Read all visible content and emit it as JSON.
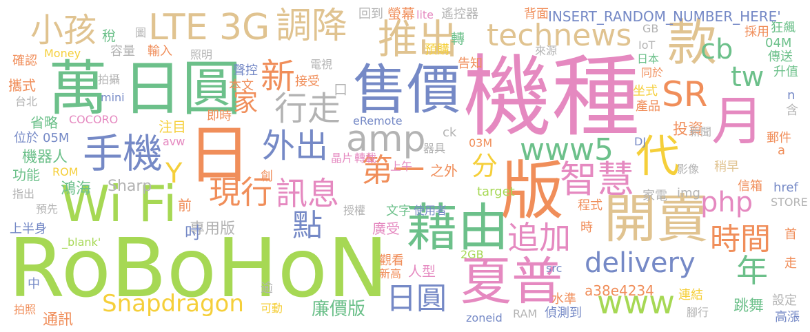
{
  "colors": {
    "pink": "#e589c0",
    "blue": "#7589c6",
    "green": "#6cc08a",
    "orange": "#f08e5a",
    "lime": "#a6d854",
    "yellow": "#f5cf3a",
    "tan": "#e0c390",
    "gray": "#b3b3b3"
  },
  "words": [
    {
      "text": "機種",
      "color": "pink"
    },
    {
      "text": "RoBoHoN",
      "color": "lime"
    },
    {
      "text": "售價",
      "color": "blue"
    },
    {
      "text": "版",
      "color": "orange"
    },
    {
      "text": "萬",
      "color": "green"
    },
    {
      "text": "日圓",
      "color": "green"
    },
    {
      "text": "日",
      "color": "orange"
    },
    {
      "text": "Wi Fi",
      "color": "lime"
    },
    {
      "text": "開賣",
      "color": "tan"
    },
    {
      "text": "藉由",
      "color": "green"
    },
    {
      "text": "夏普",
      "color": "pink"
    },
    {
      "text": "款",
      "color": "tan"
    },
    {
      "text": "月",
      "color": "pink"
    },
    {
      "text": "推出",
      "color": "tan"
    },
    {
      "text": "代",
      "color": "yellow"
    },
    {
      "text": "LTE 3G",
      "color": "tan"
    },
    {
      "text": "調降",
      "color": "tan"
    },
    {
      "text": "小孩",
      "color": "tan"
    },
    {
      "text": "technews",
      "color": "tan"
    },
    {
      "text": "手機",
      "color": "blue"
    },
    {
      "text": "智慧",
      "color": "pink"
    },
    {
      "text": "www5",
      "color": "green"
    },
    {
      "text": "外出",
      "color": "blue"
    },
    {
      "text": "行走",
      "color": "gray"
    },
    {
      "text": "SR",
      "color": "orange"
    },
    {
      "text": "新",
      "color": "orange"
    },
    {
      "text": "現行",
      "color": "orange"
    },
    {
      "text": "訊息",
      "color": "pink"
    },
    {
      "text": "amp",
      "color": "gray"
    },
    {
      "text": "第一",
      "color": "orange"
    },
    {
      "text": "php",
      "color": "pink"
    },
    {
      "text": "追加",
      "color": "pink"
    },
    {
      "text": "時間",
      "color": "orange"
    },
    {
      "text": "年",
      "color": "green"
    },
    {
      "text": "delivery",
      "color": "blue"
    },
    {
      "text": "www",
      "color": "lime"
    },
    {
      "text": "日圓",
      "color": "blue"
    },
    {
      "text": "Snapdragon",
      "color": "yellow"
    },
    {
      "text": "點",
      "color": "blue"
    },
    {
      "text": "Y",
      "color": "yellow"
    },
    {
      "text": "家",
      "color": "orange"
    },
    {
      "text": "tw",
      "color": "green"
    },
    {
      "text": "cb",
      "color": "green"
    },
    {
      "text": "分",
      "color": "yellow"
    },
    {
      "text": "投資",
      "color": "orange"
    },
    {
      "text": "廉價版",
      "color": "green"
    },
    {
      "text": "跳舞",
      "color": "green"
    },
    {
      "text": "鴻海",
      "color": "green"
    },
    {
      "text": "Sharp",
      "color": "gray"
    },
    {
      "text": "機器人",
      "color": "green"
    },
    {
      "text": "功能",
      "color": "green"
    },
    {
      "text": "專用版",
      "color": "gray"
    },
    {
      "text": "a38e4234",
      "color": "orange"
    },
    {
      "text": "廣受",
      "color": "pink"
    },
    {
      "text": "通訊",
      "color": "orange"
    },
    {
      "text": "人型",
      "color": "pink"
    },
    {
      "text": "之外",
      "color": "orange"
    },
    {
      "text": "href",
      "color": "blue"
    },
    {
      "text": "攜式",
      "color": "orange"
    },
    {
      "text": "省略",
      "color": "green"
    },
    {
      "text": "注目",
      "color": "yellow"
    },
    {
      "text": "稅",
      "color": "green"
    },
    {
      "text": "吋",
      "color": "blue"
    },
    {
      "text": "前",
      "color": "orange"
    },
    {
      "text": "晶片",
      "color": "pink"
    },
    {
      "text": "轉載",
      "color": "pink"
    },
    {
      "text": "轉",
      "color": "green"
    },
    {
      "text": "高漲",
      "color": "blue"
    },
    {
      "text": "連結",
      "color": "yellow"
    },
    {
      "text": "INSERT_RANDOM_NUMBER_HERE'",
      "color": "blue"
    },
    {
      "text": "回到",
      "color": "gray"
    },
    {
      "text": "螢幕",
      "color": "orange"
    },
    {
      "text": "lite",
      "color": "pink"
    },
    {
      "text": "遙控器",
      "color": "gray"
    },
    {
      "text": "背面",
      "color": "orange"
    },
    {
      "text": "GB",
      "color": "gray"
    },
    {
      "text": "採用",
      "color": "orange"
    },
    {
      "text": "狂飆",
      "color": "green"
    },
    {
      "text": "04M",
      "color": "green"
    },
    {
      "text": "傳送",
      "color": "green"
    },
    {
      "text": "升值",
      "color": "green"
    },
    {
      "text": "IoT",
      "color": "gray"
    },
    {
      "text": "日本",
      "color": "green"
    },
    {
      "text": "同於",
      "color": "orange"
    },
    {
      "text": "來源",
      "color": "gray"
    },
    {
      "text": "容量",
      "color": "gray"
    },
    {
      "text": "輸入",
      "color": "orange"
    },
    {
      "text": "照明",
      "color": "gray"
    },
    {
      "text": "預購",
      "color": "yellow"
    },
    {
      "text": "告知",
      "color": "orange"
    },
    {
      "text": "Money",
      "color": "yellow"
    },
    {
      "text": "確認",
      "color": "orange"
    },
    {
      "text": "電視",
      "color": "gray"
    },
    {
      "text": "聲控",
      "color": "blue"
    },
    {
      "text": "本文",
      "color": "orange"
    },
    {
      "text": "拍攝",
      "color": "gray"
    },
    {
      "text": "mini",
      "color": "blue"
    },
    {
      "text": "接受",
      "color": "orange"
    },
    {
      "text": "台北",
      "color": "gray"
    },
    {
      "text": "即時",
      "color": "orange"
    },
    {
      "text": "COCORO",
      "color": "pink"
    },
    {
      "text": "eRemote",
      "color": "blue"
    },
    {
      "text": "ck",
      "color": "gray"
    },
    {
      "text": "坐式",
      "color": "yellow"
    },
    {
      "text": "產品",
      "color": "orange"
    },
    {
      "text": "含",
      "color": "gray"
    },
    {
      "text": "n",
      "color": "blue"
    },
    {
      "text": "器具",
      "color": "gray"
    },
    {
      "text": "03M",
      "color": "orange"
    },
    {
      "text": "新聞",
      "color": "gray"
    },
    {
      "text": "DJ",
      "color": "blue"
    },
    {
      "text": "郵件",
      "color": "orange"
    },
    {
      "text": "a",
      "color": "orange"
    },
    {
      "text": "影像",
      "color": "gray"
    },
    {
      "text": "稍早",
      "color": "tan"
    },
    {
      "text": "位於",
      "color": "blue"
    },
    {
      "text": "05M",
      "color": "blue"
    },
    {
      "text": "avw",
      "color": "pink"
    },
    {
      "text": "上午",
      "color": "pink"
    },
    {
      "text": "ROM",
      "color": "yellow"
    },
    {
      "text": "創",
      "color": "orange"
    },
    {
      "text": "指出",
      "color": "gray"
    },
    {
      "text": "target",
      "color": "lime"
    },
    {
      "text": "img",
      "color": "gray"
    },
    {
      "text": "家電",
      "color": "gray"
    },
    {
      "text": "信箱",
      "color": "orange"
    },
    {
      "text": "STORE",
      "color": "gray"
    },
    {
      "text": "程式",
      "color": "orange"
    },
    {
      "text": "預先",
      "color": "gray"
    },
    {
      "text": "授權",
      "color": "gray"
    },
    {
      "text": "文字",
      "color": "green"
    },
    {
      "text": "使用者",
      "color": "blue"
    },
    {
      "text": "上半身",
      "color": "blue"
    },
    {
      "text": "_blank'",
      "color": "lime"
    },
    {
      "text": "首",
      "color": "orange"
    },
    {
      "text": "時",
      "color": "orange"
    },
    {
      "text": "觀看",
      "color": "orange"
    },
    {
      "text": "2GB",
      "color": "lime"
    },
    {
      "text": "新高",
      "color": "orange"
    },
    {
      "text": "src",
      "color": "blue"
    },
    {
      "text": "走",
      "color": "orange"
    },
    {
      "text": "中",
      "color": "blue"
    },
    {
      "text": "逾",
      "color": "gray"
    },
    {
      "text": "水準",
      "color": "orange"
    },
    {
      "text": "設定",
      "color": "gray"
    },
    {
      "text": "拍照",
      "color": "orange"
    },
    {
      "text": "可動",
      "color": "yellow"
    },
    {
      "text": "zoneid",
      "color": "blue"
    },
    {
      "text": "RAM",
      "color": "gray"
    },
    {
      "text": "偵測到",
      "color": "blue"
    },
    {
      "text": "腳行",
      "color": "gray"
    },
    {
      "text": "圖",
      "color": "gray"
    },
    {
      "text": "口",
      "color": "gray"
    }
  ]
}
